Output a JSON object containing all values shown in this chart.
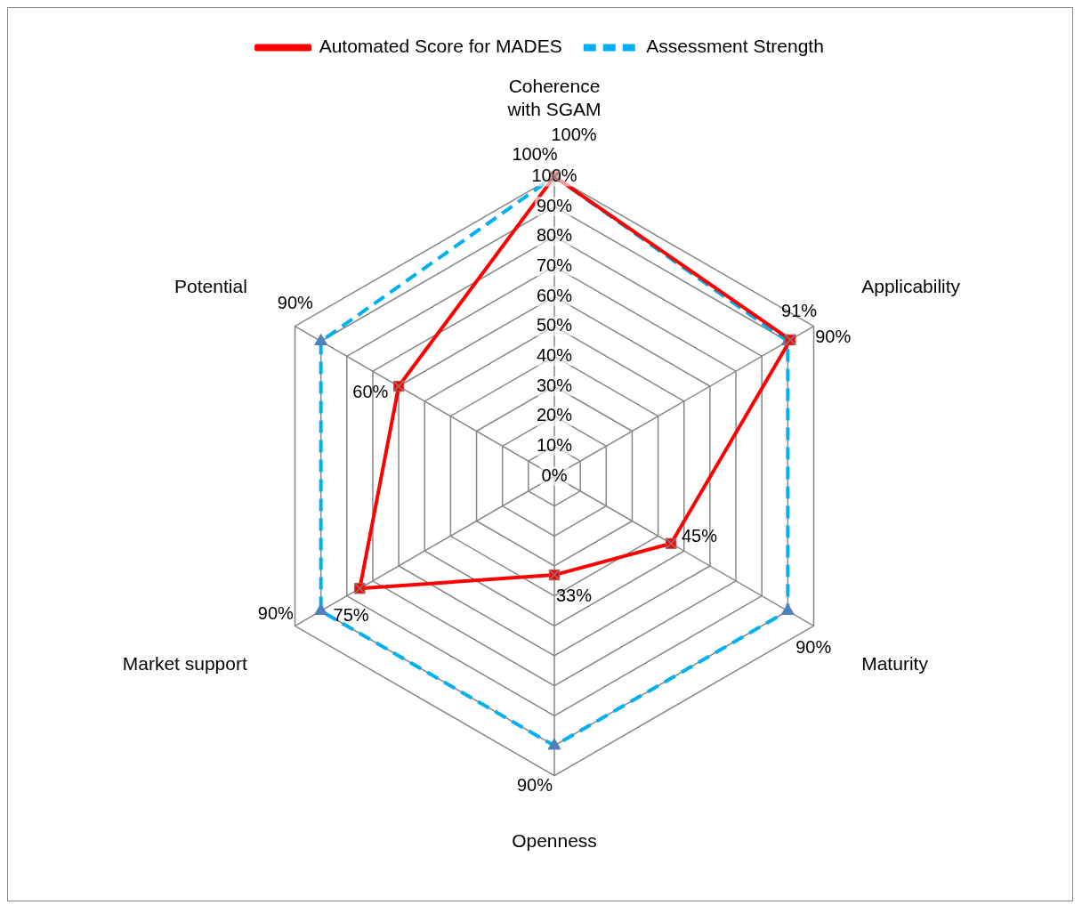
{
  "chart_data": {
    "type": "radar",
    "categories": [
      "Coherence with SGAM",
      "Applicability",
      "Maturity",
      "Openness",
      "Market support",
      "Potential"
    ],
    "series": [
      {
        "name": "Automated Score for MADES",
        "color": "#ff0000",
        "values": [
          100,
          91,
          45,
          33,
          75,
          60
        ],
        "value_labels": [
          "100%",
          "91%",
          "45%",
          "33%",
          "75%",
          "60%"
        ],
        "marker": "crossRect",
        "line_style": "solid"
      },
      {
        "name": "Assessment Strength",
        "color": "#00b0f0",
        "values": [
          100,
          90,
          90,
          90,
          90,
          90
        ],
        "value_labels": [
          "100%",
          "90%",
          "90%",
          "90%",
          "90%",
          "90%"
        ],
        "marker": "triangle",
        "line_style": "dashed"
      }
    ],
    "ylim": [
      0,
      100
    ],
    "yticks": [
      {
        "value": 0,
        "label": "0%"
      },
      {
        "value": 10,
        "label": "10%"
      },
      {
        "value": 20,
        "label": "20%"
      },
      {
        "value": 30,
        "label": "30%"
      },
      {
        "value": 40,
        "label": "40%"
      },
      {
        "value": 50,
        "label": "50%"
      },
      {
        "value": 60,
        "label": "60%"
      },
      {
        "value": 70,
        "label": "70%"
      },
      {
        "value": 80,
        "label": "80%"
      },
      {
        "value": 90,
        "label": "90%"
      },
      {
        "value": 100,
        "label": "100%"
      }
    ],
    "grid": true,
    "legend": "top",
    "data_labels": true
  }
}
